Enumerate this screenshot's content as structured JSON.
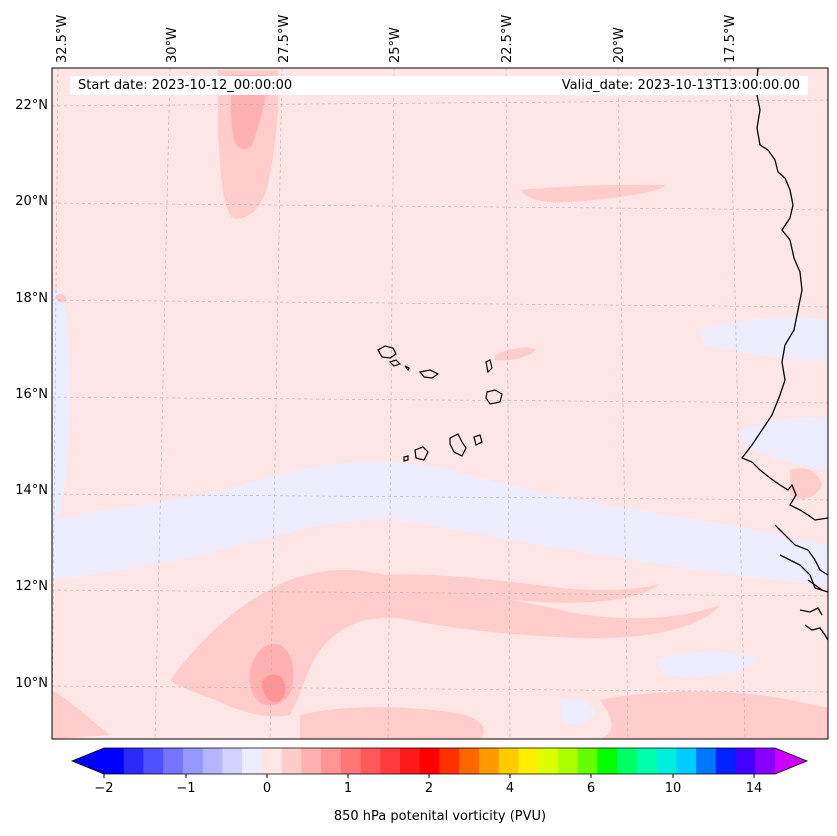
{
  "map": {
    "start_date": "Start date: 2023-10-12_00:00:00",
    "valid_date": "Valid_date: 2023-10-13T13:00:00.00",
    "lon_labels": [
      "32.5°W",
      "30°W",
      "27.5°W",
      "25°W",
      "22.5°W",
      "20°W",
      "17.5°W"
    ],
    "lat_labels": [
      "22°N",
      "20°N",
      "18°N",
      "16°N",
      "14°N",
      "12°N",
      "10°N"
    ],
    "variable": "850 hPa potenital vorticity (PVU)"
  },
  "colorbar": {
    "label": "850 hPa potenital vorticity (PVU)",
    "tick_labels": [
      "−2",
      "−1",
      "0",
      "1",
      "2",
      "4",
      "6",
      "10",
      "14"
    ],
    "colors": [
      "#0000ff",
      "#2a2aff",
      "#5050ff",
      "#7474ff",
      "#9696ff",
      "#b4b4ff",
      "#d2d2ff",
      "#ededff",
      "#ffe6e6",
      "#ffcccc",
      "#ffb0b0",
      "#ff9494",
      "#ff7676",
      "#ff5858",
      "#ff3a3a",
      "#ff1a1a",
      "#ff0000",
      "#ff3300",
      "#ff6600",
      "#ff9900",
      "#ffcc00",
      "#ffee00",
      "#ddff00",
      "#aaff00",
      "#66ff00",
      "#00ff00",
      "#00ff66",
      "#00ffaa",
      "#00eedd",
      "#00ccff",
      "#0077ff",
      "#0022ff",
      "#4400ff",
      "#8800ff"
    ],
    "extend_min_color": "#0000ff",
    "extend_max_color": "#cc00ff"
  },
  "colors": {
    "background_field": "#ffe6e6",
    "light_pos": "#ffcccc",
    "mid_pos": "#ffb0b0",
    "high_pos": "#ff9494",
    "light_neg": "#ededff",
    "coast": "#000000",
    "grid": "#b0b0b0"
  },
  "icons": [
    "coastline",
    "island"
  ]
}
